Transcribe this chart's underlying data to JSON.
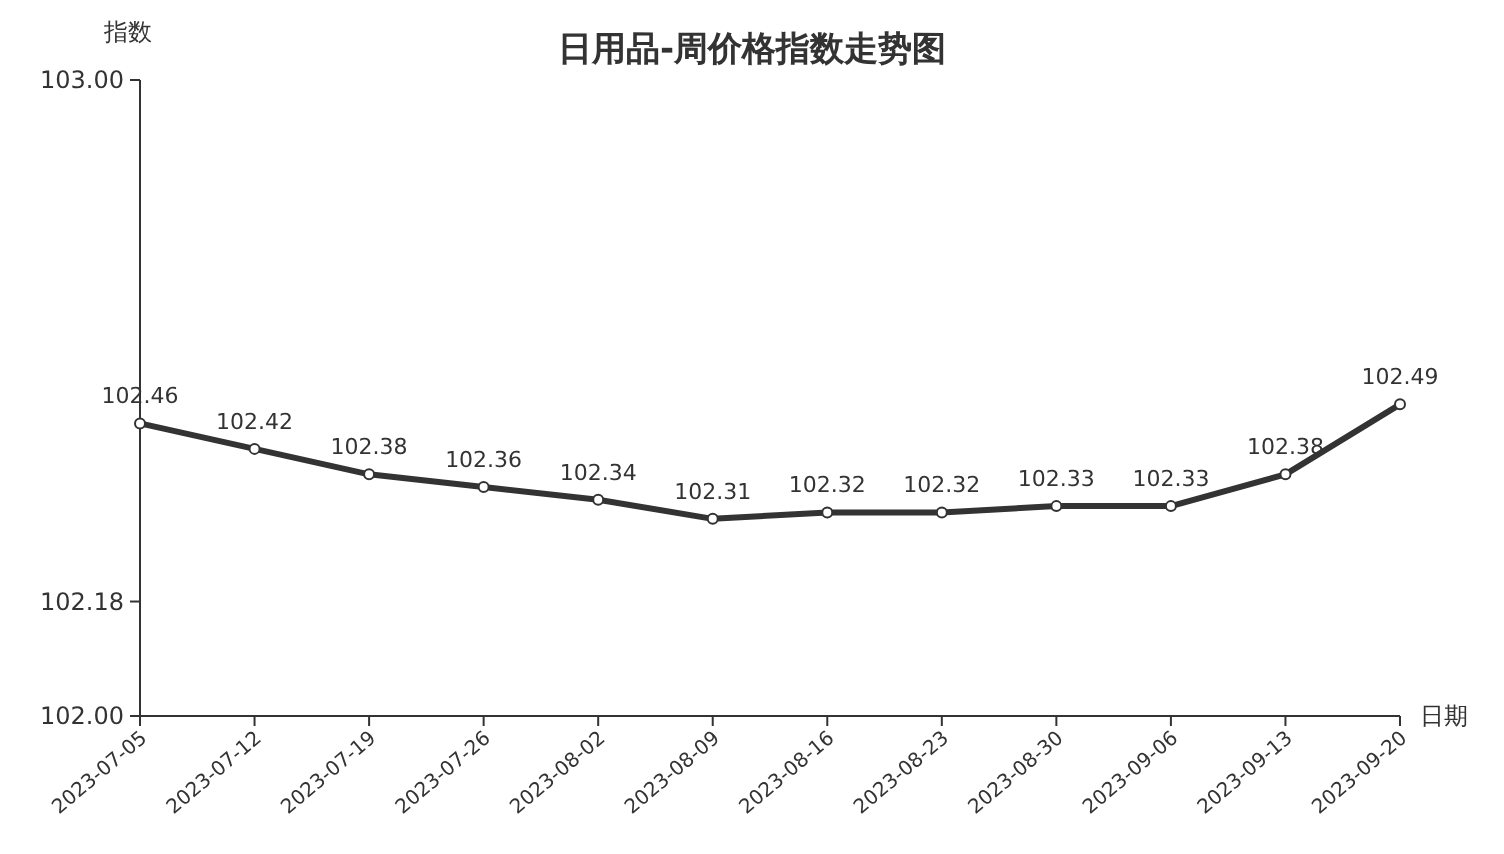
{
  "chart_data": {
    "type": "line",
    "title": "日用品-周价格指数走势图",
    "xlabel": "日期",
    "ylabel": "指数",
    "categories": [
      "2023-07-05",
      "2023-07-12",
      "2023-07-19",
      "2023-07-26",
      "2023-08-02",
      "2023-08-09",
      "2023-08-16",
      "2023-08-23",
      "2023-08-30",
      "2023-09-06",
      "2023-09-13",
      "2023-09-20"
    ],
    "series": [
      {
        "color": "#333333",
        "values": [
          102.46,
          102.42,
          102.38,
          102.36,
          102.34,
          102.31,
          102.32,
          102.32,
          102.33,
          102.33,
          102.38,
          102.49
        ]
      }
    ],
    "ylim": [
      102,
      103
    ],
    "yticks": [
      {
        "value": 102,
        "label": "102.00"
      },
      {
        "value": 102.18,
        "label": "102.18"
      },
      {
        "value": 103,
        "label": "103.00"
      }
    ],
    "data_labels": true,
    "marker": "circle",
    "line_style": "solid",
    "grid": false
  }
}
